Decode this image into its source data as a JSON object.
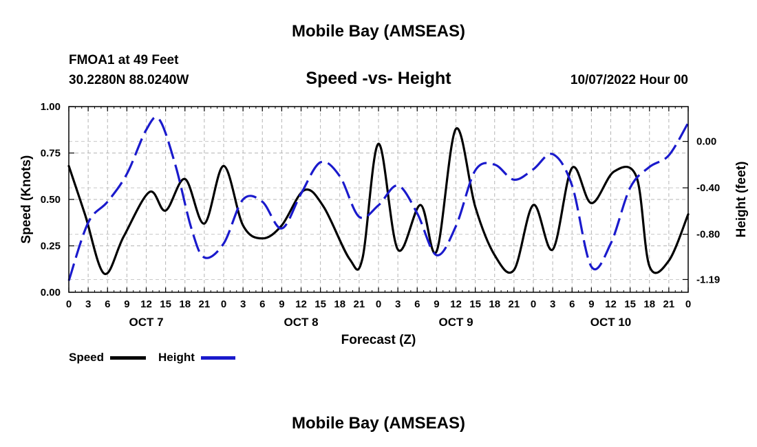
{
  "page": {
    "top_title": "Mobile Bay (AMSEAS)",
    "bottom_title": "Mobile Bay (AMSEAS)",
    "station": "FMOA1 at 49 Feet",
    "coords": "30.2280N  88.0240W",
    "date": "10/07/2022 Hour 00"
  },
  "chart_data": {
    "type": "line",
    "title": "Speed -vs- Height",
    "xlabel": "Forecast (Z)",
    "ylabel_left": "Speed (Knots)",
    "ylabel_right": "Height (feet)",
    "xlim": [
      0,
      96
    ],
    "ylim_left": [
      0,
      1.0
    ],
    "ylim_right": [
      -1.3,
      0.3
    ],
    "yticks_left": [
      0,
      0.25,
      0.5,
      0.75,
      1.0
    ],
    "ytick_labels_left": [
      "0.00",
      "0.25",
      "0.50",
      "0.75",
      "1.00"
    ],
    "yticks_right": [
      0.0,
      -0.4,
      -0.8,
      -1.19
    ],
    "ytick_labels_right": [
      "0.00",
      "-0.40",
      "-0.80",
      "-1.19"
    ],
    "x_ticks": [
      0,
      3,
      6,
      9,
      12,
      15,
      18,
      21,
      24,
      27,
      30,
      33,
      36,
      39,
      42,
      45,
      48,
      51,
      54,
      57,
      60,
      63,
      66,
      69,
      72,
      75,
      78,
      81,
      84,
      87,
      90,
      93,
      96
    ],
    "x_tick_labels": [
      "0",
      "3",
      "6",
      "9",
      "12",
      "15",
      "18",
      "21",
      "0",
      "3",
      "6",
      "9",
      "12",
      "15",
      "18",
      "21",
      "0",
      "3",
      "6",
      "9",
      "12",
      "15",
      "18",
      "21",
      "0",
      "3",
      "6",
      "9",
      "12",
      "15",
      "18",
      "21",
      "0"
    ],
    "day_labels": [
      {
        "x": 12,
        "label": "OCT 7"
      },
      {
        "x": 36,
        "label": "OCT 8"
      },
      {
        "x": 60,
        "label": "OCT 9"
      },
      {
        "x": 84,
        "label": "OCT 10"
      }
    ],
    "grid": true,
    "legend": "bottom-left",
    "series": [
      {
        "name": "Speed",
        "axis": "left",
        "color": "#000000",
        "style": "solid",
        "points": [
          [
            0,
            0.68
          ],
          [
            2.5,
            0.42
          ],
          [
            5.5,
            0.1
          ],
          [
            8.5,
            0.3
          ],
          [
            12.5,
            0.54
          ],
          [
            15,
            0.44
          ],
          [
            18,
            0.61
          ],
          [
            21,
            0.37
          ],
          [
            24,
            0.68
          ],
          [
            27,
            0.36
          ],
          [
            30,
            0.29
          ],
          [
            33,
            0.36
          ],
          [
            36.5,
            0.55
          ],
          [
            39.5,
            0.46
          ],
          [
            43.5,
            0.18
          ],
          [
            45.5,
            0.18
          ],
          [
            48,
            0.8
          ],
          [
            51,
            0.23
          ],
          [
            54.5,
            0.47
          ],
          [
            57,
            0.22
          ],
          [
            60,
            0.88
          ],
          [
            63,
            0.46
          ],
          [
            66,
            0.2
          ],
          [
            69,
            0.12
          ],
          [
            72,
            0.47
          ],
          [
            75,
            0.23
          ],
          [
            78,
            0.67
          ],
          [
            81,
            0.48
          ],
          [
            84.5,
            0.65
          ],
          [
            88,
            0.62
          ],
          [
            90,
            0.14
          ],
          [
            93,
            0.17
          ],
          [
            96,
            0.42
          ]
        ]
      },
      {
        "name": "Height",
        "axis": "right",
        "color": "#1a1acc",
        "style": "dashed",
        "points": [
          [
            0,
            -1.2
          ],
          [
            3,
            -0.7
          ],
          [
            6,
            -0.52
          ],
          [
            9,
            -0.28
          ],
          [
            12,
            0.1
          ],
          [
            14,
            0.19
          ],
          [
            16.5,
            -0.2
          ],
          [
            19,
            -0.75
          ],
          [
            21,
            -1.0
          ],
          [
            24,
            -0.88
          ],
          [
            27,
            -0.5
          ],
          [
            30,
            -0.52
          ],
          [
            33,
            -0.75
          ],
          [
            36,
            -0.45
          ],
          [
            39,
            -0.18
          ],
          [
            42,
            -0.3
          ],
          [
            45,
            -0.65
          ],
          [
            48,
            -0.55
          ],
          [
            51,
            -0.38
          ],
          [
            54,
            -0.62
          ],
          [
            57,
            -0.98
          ],
          [
            60,
            -0.73
          ],
          [
            63,
            -0.25
          ],
          [
            66,
            -0.2
          ],
          [
            69,
            -0.33
          ],
          [
            72,
            -0.24
          ],
          [
            75,
            -0.11
          ],
          [
            78,
            -0.38
          ],
          [
            81,
            -1.08
          ],
          [
            84,
            -0.88
          ],
          [
            87,
            -0.4
          ],
          [
            90,
            -0.22
          ],
          [
            93,
            -0.12
          ],
          [
            96,
            0.16
          ]
        ]
      }
    ]
  }
}
